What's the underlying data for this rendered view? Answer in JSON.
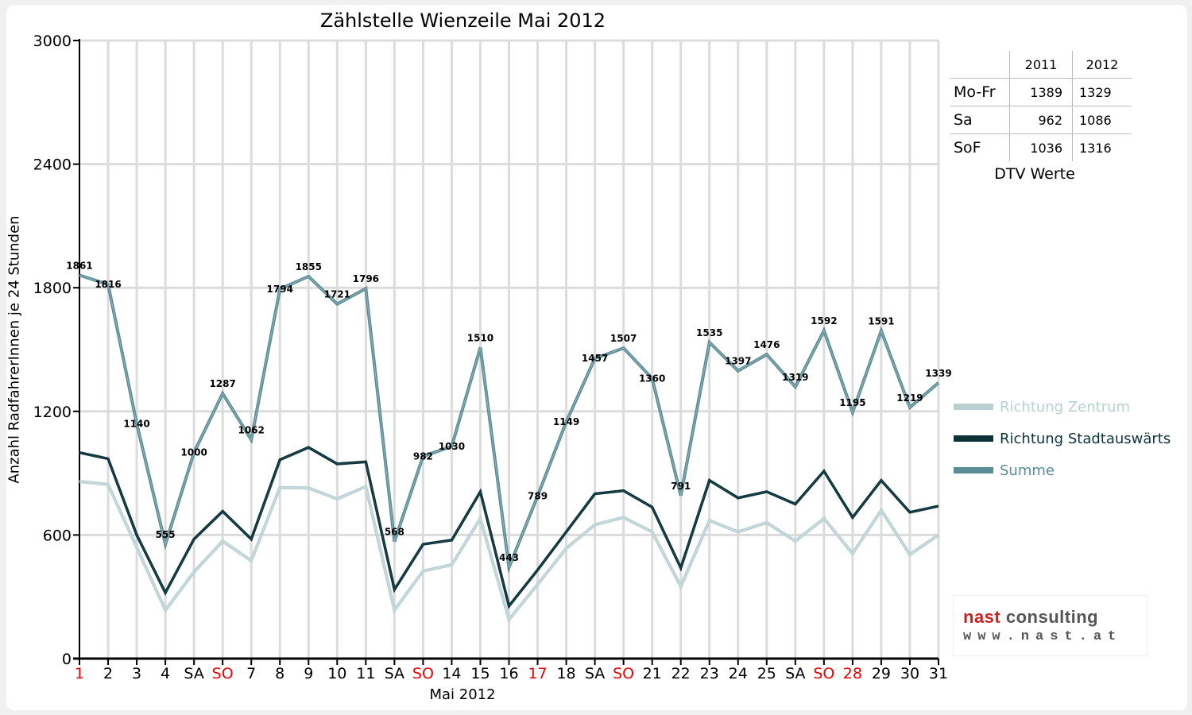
{
  "chart_data": {
    "type": "line",
    "title": "Zählstelle Wienzeile Mai 2012",
    "xlabel": "Mai 2012",
    "ylabel": "Anzahl RadfahrerInnen je 24 Stunden",
    "ylim": [
      0,
      3000
    ],
    "yticks": [
      0,
      600,
      1200,
      1800,
      2400,
      3000
    ],
    "grid": true,
    "legend_position": "right",
    "categories": [
      "1",
      "2",
      "3",
      "4",
      "SA",
      "SO",
      "7",
      "8",
      "9",
      "10",
      "11",
      "SA",
      "SO",
      "14",
      "15",
      "16",
      "17",
      "18",
      "SA",
      "SO",
      "21",
      "22",
      "23",
      "24",
      "25",
      "SA",
      "SO",
      "28",
      "29",
      "30",
      "31"
    ],
    "red_categories": [
      0,
      5,
      12,
      16,
      19,
      26,
      27
    ],
    "series": [
      {
        "name": "Richtung Zentrum",
        "color": "#b9d0d3",
        "values": [
          860,
          845,
          540,
          235,
          420,
          570,
          475,
          830,
          828,
          775,
          835,
          235,
          425,
          455,
          680,
          190,
          360,
          535,
          650,
          685,
          615,
          350,
          670,
          615,
          660,
          570,
          680,
          510,
          720,
          505,
          600
        ]
      },
      {
        "name": "Richtung Stadtauswärts",
        "color": "#0d3339",
        "values": [
          1000,
          970,
          600,
          320,
          580,
          715,
          580,
          965,
          1025,
          945,
          955,
          335,
          555,
          575,
          810,
          255,
          430,
          615,
          800,
          815,
          735,
          440,
          865,
          780,
          810,
          750,
          910,
          685,
          865,
          710,
          740
        ]
      },
      {
        "name": "Summe",
        "color": "#5a8c95",
        "values": [
          1861,
          1816,
          1140,
          555,
          1000,
          1287,
          1062,
          1794,
          1855,
          1721,
          1796,
          568,
          982,
          1030,
          1510,
          443,
          789,
          1149,
          1457,
          1507,
          1360,
          791,
          1535,
          1397,
          1476,
          1319,
          1592,
          1195,
          1591,
          1219,
          1339
        ],
        "labels": [
          "1861",
          "1816",
          "1140",
          "555",
          "1000",
          "1287",
          "1062",
          "1794",
          "1855",
          "1721",
          "1796",
          "568",
          "982",
          "1030",
          "1510",
          "443",
          "789",
          "1149",
          "1457",
          "1507",
          "1360",
          "791",
          "1535",
          "1397",
          "1476",
          "1319",
          "1592",
          "1195",
          "1591",
          "1219",
          "1339"
        ]
      }
    ]
  },
  "dtv_table": {
    "caption": "DTV Werte",
    "headers": [
      "",
      "2011",
      "2012"
    ],
    "rows": [
      {
        "label": "Mo-Fr",
        "v2011": "1389",
        "v2012": "1329"
      },
      {
        "label": "Sa",
        "v2011": "962",
        "v2012": "1086"
      },
      {
        "label": "SoF",
        "v2011": "1036",
        "v2012": "1316"
      }
    ]
  },
  "logo": {
    "part1": "nast",
    "part2": " consulting",
    "url": "www.nast.at"
  }
}
